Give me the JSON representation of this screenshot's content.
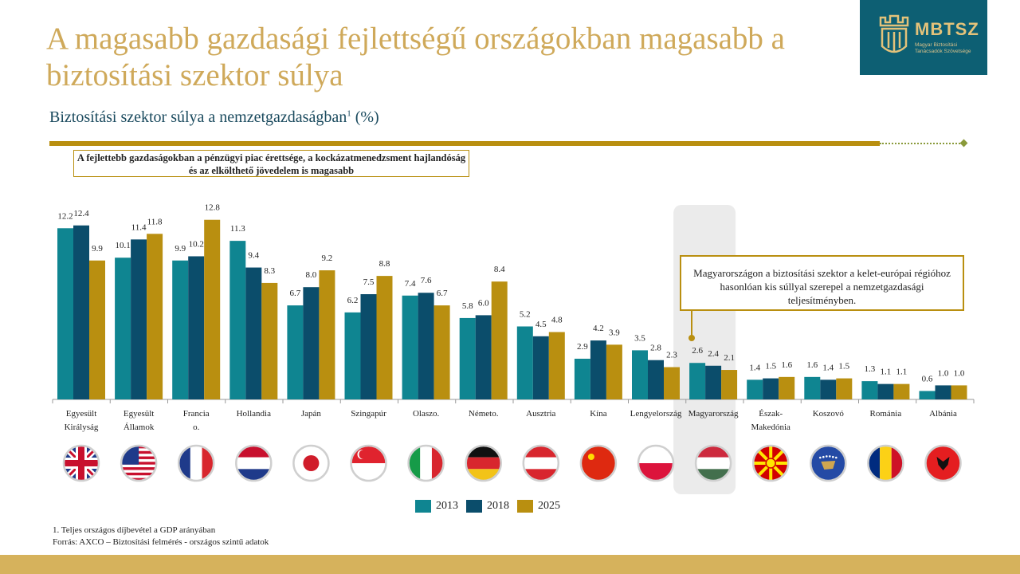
{
  "title": "A magasabb gazdasági fejlettségű országokban magasabb a biztosítási szektor súlya",
  "logo": {
    "name": "MBTSZ",
    "subtitle": "Magyar Biztosítási Tanácsadók Szövetsége"
  },
  "subtitle": "Biztosítási szektor súlya a nemzetgazdaságban",
  "subtitle_sup": "1",
  "subtitle_unit": "(%)",
  "callout_top": "A fejlettebb gazdaságokban a pénzügyi piac érettsége, a kockázatmenedzsment hajlandóság és az elkölthető jövedelem is magasabb",
  "callout_hungary": "Magyarországon a biztosítási szektor a kelet-európai régióhoz hasonlóan kis súllyal szerepel a nemzetgazdasági teljesítményben.",
  "footnote": "1. Teljes országos díjbevétel a GDP arányában",
  "source": "Forrás: AXCO – Biztosítási felmérés - országos szintű adatok",
  "colors": {
    "s2013": "#0f8591",
    "s2018": "#0b4d6b",
    "s2025": "#b98f10",
    "highlight": "#ebebeb"
  },
  "chart_data": {
    "type": "bar",
    "title": "Biztosítási szektor súlya a nemzetgazdaságban (%)",
    "ylim": [
      0,
      14
    ],
    "grid": false,
    "legend_position": "bottom",
    "categories": [
      "Egyesült Királyság",
      "Egyesült Államok",
      "Francia o.",
      "Hollandia",
      "Japán",
      "Szingapúr",
      "Olaszo.",
      "Németo.",
      "Ausztria",
      "Kína",
      "Lengyelország",
      "Magyarország",
      "Észak-Makedónia",
      "Koszovó",
      "Románia",
      "Albánia"
    ],
    "highlight_category": "Magyarország",
    "series": [
      {
        "name": "2013",
        "values": [
          12.2,
          10.1,
          9.9,
          11.3,
          6.7,
          6.2,
          7.4,
          5.8,
          5.2,
          2.9,
          3.5,
          2.6,
          1.4,
          1.6,
          1.3,
          0.6
        ]
      },
      {
        "name": "2018",
        "values": [
          12.4,
          11.4,
          10.2,
          9.4,
          8.0,
          7.5,
          7.6,
          6.0,
          4.5,
          4.2,
          2.8,
          2.4,
          1.5,
          1.4,
          1.1,
          1.0
        ]
      },
      {
        "name": "2025",
        "values": [
          9.9,
          11.8,
          12.8,
          8.3,
          9.2,
          8.8,
          6.7,
          8.4,
          4.8,
          3.9,
          2.3,
          2.1,
          1.6,
          1.5,
          1.1,
          1.0
        ]
      }
    ],
    "flags": [
      "uk-flag-icon",
      "usa-flag-icon",
      "france-flag-icon",
      "netherlands-flag-icon",
      "japan-flag-icon",
      "singapore-flag-icon",
      "italy-flag-icon",
      "germany-flag-icon",
      "austria-flag-icon",
      "china-flag-icon",
      "poland-flag-icon",
      "hungary-flag-icon",
      "north-macedonia-flag-icon",
      "kosovo-flag-icon",
      "romania-flag-icon",
      "albania-flag-icon"
    ]
  }
}
